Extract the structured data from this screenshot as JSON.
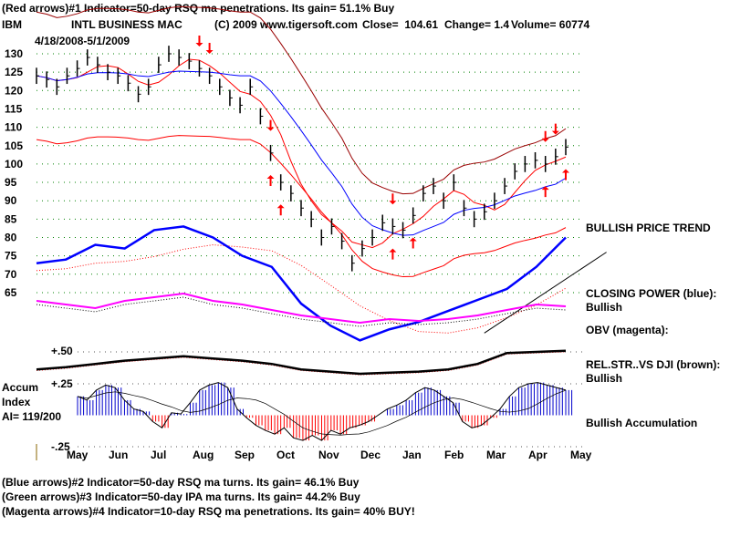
{
  "header": {
    "indicator1": "(Red arrows)#1 Indicator=50-day RSQ ma penetrations. Its gain= 51.1% Buy",
    "symbol": "IBM",
    "name": "INTL BUSINESS MAC",
    "copyright": "(C) 2009 www.tigersoft.com",
    "close": "Close=  104.61",
    "change": "Change= 1.4",
    "volume": "Volume= 60774",
    "date_range": "4/18/2008-5/1/2009"
  },
  "footer": {
    "indicator2": "(Blue arrows)#2 Indicator=50-day RSQ ma turns. Its gain= 46.1% Buy",
    "indicator3": "(Green arrows)#3 Indicator=50-day IPA ma turns. Its gain= 44.2% Buy",
    "indicator4": "(Magenta arrows)#4 Indicator=10-day RSQ ma penetrations. Its gain= 40% BUY!"
  },
  "right_labels": {
    "trend": "BULLISH PRICE TREND",
    "cp": "CLOSING POWER (blue):",
    "cp_status": "Bullish",
    "obv": "OBV (magenta):",
    "rs": "REL.STR..VS DJI (brown):",
    "rs_status": "Bullish",
    "accum": "Bullish Accumulation"
  },
  "accum_labels": {
    "title1": "Accum",
    "title2": "Index",
    "ai": "AI= 119/200",
    "p50": "+.50",
    "p25": "+.25",
    "m25": "-.25"
  },
  "colors": {
    "price": "#000000",
    "ma": "#0000ff",
    "band": "#ff0000",
    "band_dark": "#990000",
    "cp": "#0000ff",
    "obv": "#ff00ff",
    "rs": "#000000",
    "accum_pos": "#0000cc",
    "accum_neg": "#ff0000",
    "grid": "#008000"
  },
  "chart_data": {
    "type": "line",
    "title": "IBM INTL BUSINESS MAC 4/18/2008-5/1/2009",
    "x_ticks": [
      "May",
      "Jun",
      "Jul",
      "Aug",
      "Sep",
      "Oct",
      "Nov",
      "Dec",
      "Jan",
      "Feb",
      "Mar",
      "Apr",
      "May"
    ],
    "y_ticks": [
      130,
      125,
      120,
      115,
      110,
      105,
      100,
      95,
      90,
      85,
      80,
      75,
      70,
      65
    ],
    "ylim": [
      65,
      130
    ],
    "weekly_close": [
      124,
      123,
      121,
      124,
      126,
      129,
      127,
      125,
      124,
      122,
      119,
      121,
      127,
      130,
      129,
      128,
      126,
      124,
      121,
      118,
      116,
      121,
      113,
      103,
      95,
      92,
      88,
      85,
      80,
      83,
      79,
      73,
      77,
      80,
      84,
      83,
      82,
      86,
      92,
      94,
      90,
      95,
      88,
      85,
      87,
      90,
      94,
      98,
      100,
      101,
      100,
      102,
      104.61
    ],
    "closing_power": [
      73,
      74,
      78,
      77,
      82,
      83,
      80,
      75,
      72,
      62,
      56,
      52,
      55,
      57,
      60,
      63,
      66,
      72,
      80
    ],
    "obv": [
      60,
      58,
      56,
      60,
      62,
      64,
      60,
      58,
      55,
      52,
      50,
      48,
      50,
      49,
      50,
      52,
      55,
      58,
      57
    ],
    "rel_strength": [
      30,
      32,
      35,
      38,
      40,
      42,
      40,
      38,
      35,
      30,
      28,
      26,
      27,
      28,
      30,
      35,
      45,
      46,
      47
    ],
    "accum_index": [
      0.15,
      0.12,
      0.2,
      0.24,
      0.22,
      0.12,
      0.05,
      0.03,
      -0.05,
      -0.1,
      0.02,
      0.01,
      0.1,
      0.2,
      0.24,
      0.26,
      0.22,
      0.05,
      -0.02,
      -0.08,
      -0.12,
      -0.15,
      -0.1,
      -0.18,
      -0.2,
      -0.16,
      -0.2,
      -0.12,
      -0.15,
      -0.1,
      -0.08,
      -0.05,
      0.0,
      0.05,
      0.08,
      0.12,
      0.18,
      0.22,
      0.2,
      0.15,
      0.1,
      -0.05,
      -0.1,
      -0.08,
      -0.02,
      0.05,
      0.15,
      0.22,
      0.25,
      0.26,
      0.24,
      0.22,
      0.2
    ],
    "accum_ylim": [
      -0.25,
      0.5
    ],
    "arrows": [
      {
        "week": 16,
        "dir": "down"
      },
      {
        "week": 17,
        "dir": "down"
      },
      {
        "week": 23,
        "dir": "down"
      },
      {
        "week": 23,
        "dir": "up"
      },
      {
        "week": 24,
        "dir": "up"
      },
      {
        "week": 35,
        "dir": "down"
      },
      {
        "week": 35,
        "dir": "up"
      },
      {
        "week": 37,
        "dir": "up"
      },
      {
        "week": 50,
        "dir": "down"
      },
      {
        "week": 51,
        "dir": "down"
      },
      {
        "week": 50,
        "dir": "up"
      },
      {
        "week": 52,
        "dir": "up"
      }
    ],
    "trendline": {
      "from": {
        "week": 44,
        "cp": 54
      },
      "to": {
        "week": 56,
        "cp": 76
      }
    }
  }
}
